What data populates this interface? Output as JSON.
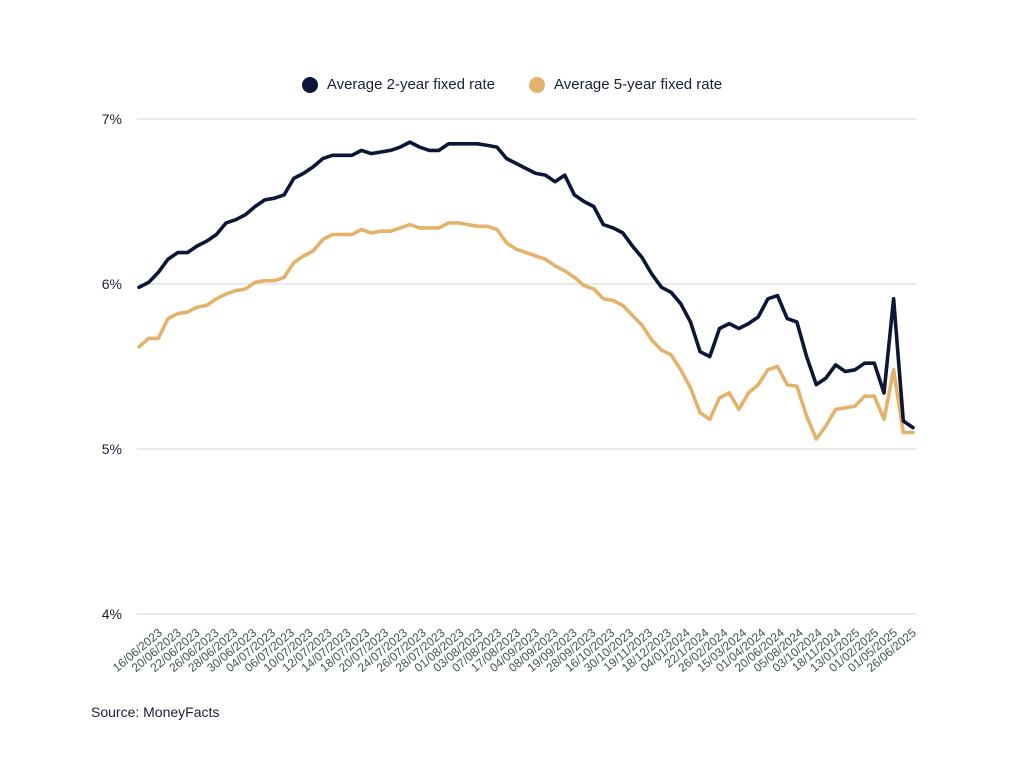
{
  "source": "Source: MoneyFacts",
  "colors": {
    "series_2yr": "#0e1638",
    "series_5yr": "#e3b36b",
    "grid": "#d6d6d6"
  },
  "chart_data": {
    "type": "line",
    "title": "",
    "xlabel": "",
    "ylabel": "",
    "ylim": [
      4,
      7
    ],
    "y_ticks": [
      "7%",
      "6%",
      "5%",
      "4%"
    ],
    "y_tick_values": [
      7,
      6,
      5,
      4
    ],
    "grid": true,
    "legend_placement": "top-center",
    "x_tick_labels": [
      "16/06/2023",
      "20/06/2023",
      "22/06/2023",
      "26/06/2023",
      "28/06/2023",
      "30/06/2023",
      "04/07/2023",
      "06/07/2023",
      "10/07/2023",
      "12/07/2023",
      "14/07/2023",
      "18/07/2023",
      "20/07/2023",
      "24/07/2023",
      "26/07/2023",
      "28/07/2023",
      "01/08/2023",
      "03/08/2023",
      "07/08/2023",
      "17/08/2023",
      "04/09/2023",
      "08/09/2023",
      "19/09/2023",
      "28/09/2023",
      "16/10/2023",
      "30/10/2023",
      "19/11/2023",
      "18/12/2023",
      "04/01/2024",
      "22/1/2024",
      "26/02/2024",
      "15/03/2024",
      "01/04/2024",
      "20/06/2024",
      "05/08/2024",
      "03/10/2024",
      "18/11/2024",
      "13/01/2025",
      "01/02/2025",
      "01/05/2025",
      "26/06/2025"
    ],
    "series": [
      {
        "name": "Average 2-year fixed rate",
        "values": [
          5.98,
          6.01,
          6.07,
          6.15,
          6.19,
          6.19,
          6.23,
          6.26,
          6.3,
          6.37,
          6.39,
          6.42,
          6.47,
          6.51,
          6.52,
          6.54,
          6.64,
          6.67,
          6.71,
          6.76,
          6.78,
          6.78,
          6.78,
          6.81,
          6.79,
          6.8,
          6.81,
          6.83,
          6.86,
          6.83,
          6.81,
          6.81,
          6.85,
          6.85,
          6.85,
          6.85,
          6.84,
          6.83,
          6.76,
          6.73,
          6.7,
          6.67,
          6.66,
          6.62,
          6.66,
          6.54,
          6.5,
          6.47,
          6.36,
          6.34,
          6.31,
          6.23,
          6.16,
          6.06,
          5.98,
          5.95,
          5.88,
          5.77,
          5.59,
          5.56,
          5.73,
          5.76,
          5.73,
          5.76,
          5.8,
          5.91,
          5.93,
          5.79,
          5.77,
          5.56,
          5.39,
          5.43,
          5.51,
          5.47,
          5.48,
          5.52,
          5.52,
          5.34,
          5.91,
          5.17,
          5.13
        ]
      },
      {
        "name": "Average 5-year fixed rate",
        "values": [
          5.62,
          5.67,
          5.67,
          5.79,
          5.82,
          5.83,
          5.86,
          5.87,
          5.91,
          5.94,
          5.96,
          5.97,
          6.01,
          6.02,
          6.02,
          6.04,
          6.13,
          6.17,
          6.2,
          6.27,
          6.3,
          6.3,
          6.3,
          6.33,
          6.31,
          6.32,
          6.32,
          6.34,
          6.36,
          6.34,
          6.34,
          6.34,
          6.37,
          6.37,
          6.36,
          6.35,
          6.35,
          6.33,
          6.25,
          6.21,
          6.19,
          6.17,
          6.15,
          6.11,
          6.08,
          6.04,
          5.99,
          5.97,
          5.91,
          5.9,
          5.87,
          5.81,
          5.75,
          5.66,
          5.6,
          5.57,
          5.48,
          5.37,
          5.22,
          5.18,
          5.31,
          5.34,
          5.24,
          5.34,
          5.39,
          5.48,
          5.5,
          5.39,
          5.38,
          5.2,
          5.06,
          5.14,
          5.24,
          5.25,
          5.26,
          5.32,
          5.32,
          5.18,
          5.48,
          5.1,
          5.1
        ]
      }
    ]
  }
}
